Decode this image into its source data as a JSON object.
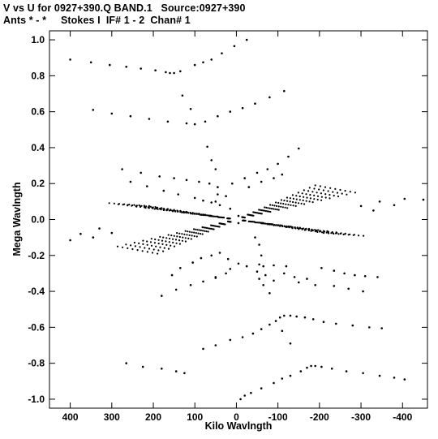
{
  "header": {
    "title": "V vs U for 0927+390.Q BAND.1   Source:0927+390",
    "subtitle": "Ants * - *     Stokes I  IF# 1 - 2  Chan# 1"
  },
  "colors": {
    "background": "#ffffff",
    "ink": "#000000"
  },
  "chart_data": {
    "type": "scatter",
    "xlabel": "Kilo Wavlngth",
    "ylabel": "Mega Wavlngth",
    "xlim": [
      450,
      -460
    ],
    "ylim": [
      -1.05,
      1.05
    ],
    "x_unit": "kilo wavelengths",
    "y_unit": "mega wavelengths",
    "x_ticks": [
      400,
      300,
      200,
      100,
      0,
      -100,
      -200,
      -300,
      -400
    ],
    "x_tick_labels": [
      "400",
      "300",
      "200",
      "100",
      "0",
      "-100",
      "-200",
      "-300",
      "-400"
    ],
    "y_ticks": [
      1.0,
      0.8,
      0.6,
      0.4,
      0.2,
      0.0,
      -0.2,
      -0.4,
      -0.6,
      -0.8,
      -1.0
    ],
    "y_tick_labels": [
      "1.0",
      "0.8",
      "0.6",
      "0.4",
      "0.2",
      "0.0",
      "-0.2",
      "-0.4",
      "-0.6",
      "-0.8",
      "-1.0"
    ],
    "grid": false,
    "series": [
      {
        "points": [
          [
            400,
            0.89
          ],
          [
            350,
            0.875
          ],
          [
            305,
            0.86
          ],
          [
            265,
            0.85
          ],
          [
            230,
            0.84
          ],
          [
            195,
            0.83
          ],
          [
            170,
            0.82
          ],
          [
            160,
            0.815
          ],
          [
            150,
            0.815
          ],
          [
            135,
            0.825
          ],
          [
            100,
            0.86
          ],
          [
            80,
            0.875
          ],
          [
            60,
            0.89
          ],
          [
            35,
            0.925
          ],
          [
            5,
            0.965
          ],
          [
            -25,
            1.0
          ],
          [
            345,
            0.61
          ],
          [
            300,
            0.59
          ],
          [
            255,
            0.575
          ],
          [
            210,
            0.56
          ],
          [
            165,
            0.545
          ],
          [
            120,
            0.535
          ],
          [
            100,
            0.53
          ],
          [
            75,
            0.545
          ],
          [
            45,
            0.575
          ],
          [
            15,
            0.6
          ],
          [
            -15,
            0.62
          ],
          [
            -45,
            0.645
          ],
          [
            -80,
            0.68
          ],
          [
            -115,
            0.715
          ],
          [
            130,
            0.69
          ],
          [
            110,
            0.615
          ],
          [
            70,
            0.405
          ],
          [
            60,
            0.33
          ],
          [
            50,
            0.28
          ],
          [
            275,
            0.28
          ],
          [
            230,
            0.26
          ],
          [
            185,
            0.24
          ],
          [
            150,
            0.23
          ],
          [
            120,
            0.22
          ],
          [
            90,
            0.21
          ],
          [
            65,
            0.2
          ],
          [
            45,
            0.14
          ],
          [
            25,
            0.13
          ],
          [
            45,
            0.18
          ],
          [
            10,
            0.2
          ],
          [
            -20,
            0.23
          ],
          [
            -50,
            0.26
          ],
          [
            -75,
            0.28
          ],
          [
            -100,
            0.31
          ],
          [
            -125,
            0.35
          ],
          [
            -150,
            0.395
          ],
          [
            50,
            0.1
          ],
          [
            255,
            0.21
          ],
          [
            215,
            0.185
          ],
          [
            175,
            0.16
          ],
          [
            140,
            0.14
          ],
          [
            100,
            0.12
          ],
          [
            80,
            0.105
          ],
          [
            60,
            0.095
          ],
          [
            40,
            0.08
          ],
          [
            15,
            0.06
          ],
          [
            -5,
            0.02
          ],
          [
            -30,
            0.18
          ],
          [
            -60,
            0.21
          ],
          [
            -90,
            0.23
          ],
          [
            -110,
            0.25
          ],
          [
            -5,
            -0.02
          ],
          [
            -45,
            -0.1
          ],
          [
            -55,
            -0.14
          ],
          [
            -60,
            -0.2
          ],
          [
            -65,
            -0.26
          ],
          [
            -55,
            -0.25
          ],
          [
            -90,
            -0.255
          ],
          [
            -120,
            -0.26
          ],
          [
            155,
            -0.31
          ],
          [
            135,
            -0.27
          ],
          [
            105,
            -0.24
          ],
          [
            85,
            -0.215
          ],
          [
            60,
            -0.2
          ],
          [
            40,
            -0.185
          ],
          [
            20,
            -0.22
          ],
          [
            -5,
            -0.245
          ],
          [
            -25,
            -0.26
          ],
          [
            -50,
            -0.29
          ],
          [
            -70,
            -0.31
          ],
          [
            -90,
            -0.34
          ],
          [
            180,
            -0.425
          ],
          [
            145,
            -0.39
          ],
          [
            110,
            -0.365
          ],
          [
            80,
            -0.345
          ],
          [
            50,
            -0.32
          ],
          [
            25,
            -0.3
          ],
          [
            -55,
            -0.33
          ],
          [
            -65,
            -0.365
          ],
          [
            -80,
            -0.41
          ],
          [
            50,
            -0.325
          ],
          [
            15,
            -0.275
          ],
          [
            -150,
            -0.35
          ],
          [
            -190,
            -0.365
          ],
          [
            -235,
            -0.37
          ],
          [
            -270,
            -0.385
          ],
          [
            -305,
            -0.4
          ],
          [
            -205,
            -0.27
          ],
          [
            -235,
            -0.285
          ],
          [
            -260,
            -0.3
          ],
          [
            -285,
            -0.31
          ],
          [
            -310,
            -0.315
          ],
          [
            -340,
            -0.32
          ],
          [
            -140,
            -0.32
          ],
          [
            -170,
            -0.33
          ],
          [
            -115,
            -0.3
          ],
          [
            80,
            -0.72
          ],
          [
            50,
            -0.7
          ],
          [
            15,
            -0.67
          ],
          [
            -15,
            -0.655
          ],
          [
            -40,
            -0.635
          ],
          [
            -60,
            -0.61
          ],
          [
            -80,
            -0.585
          ],
          [
            -95,
            -0.565
          ],
          [
            -105,
            -0.545
          ],
          [
            -115,
            -0.535
          ],
          [
            -130,
            -0.535
          ],
          [
            -145,
            -0.54
          ],
          [
            -165,
            -0.545
          ],
          [
            -185,
            -0.555
          ],
          [
            -210,
            -0.57
          ],
          [
            -240,
            -0.58
          ],
          [
            -280,
            -0.59
          ],
          [
            -320,
            -0.6
          ],
          [
            -350,
            -0.605
          ],
          [
            -130,
            -0.69
          ],
          [
            -110,
            -0.62
          ],
          [
            265,
            -0.8
          ],
          [
            225,
            -0.82
          ],
          [
            180,
            -0.83
          ],
          [
            145,
            -0.845
          ],
          [
            125,
            -0.855
          ],
          [
            -10,
            -1.0
          ],
          [
            -20,
            -0.98
          ],
          [
            -35,
            -0.965
          ],
          [
            -60,
            -0.94
          ],
          [
            -90,
            -0.91
          ],
          [
            -110,
            -0.885
          ],
          [
            -130,
            -0.87
          ],
          [
            -155,
            -0.845
          ],
          [
            -170,
            -0.825
          ],
          [
            -180,
            -0.815
          ],
          [
            -190,
            -0.815
          ],
          [
            -205,
            -0.82
          ],
          [
            -230,
            -0.83
          ],
          [
            -265,
            -0.845
          ],
          [
            -305,
            -0.855
          ],
          [
            -345,
            -0.87
          ],
          [
            -380,
            -0.88
          ],
          [
            -405,
            -0.89
          ],
          [
            400,
            -0.115
          ],
          [
            375,
            -0.08
          ],
          [
            345,
            -0.1
          ],
          [
            330,
            -0.05
          ],
          [
            300,
            -0.075
          ],
          [
            -405,
            0.115
          ],
          [
            -380,
            0.08
          ],
          [
            -345,
            0.1
          ],
          [
            -330,
            0.05
          ],
          [
            -300,
            0.075
          ],
          [
            -450,
            0.11
          ]
        ]
      }
    ]
  }
}
